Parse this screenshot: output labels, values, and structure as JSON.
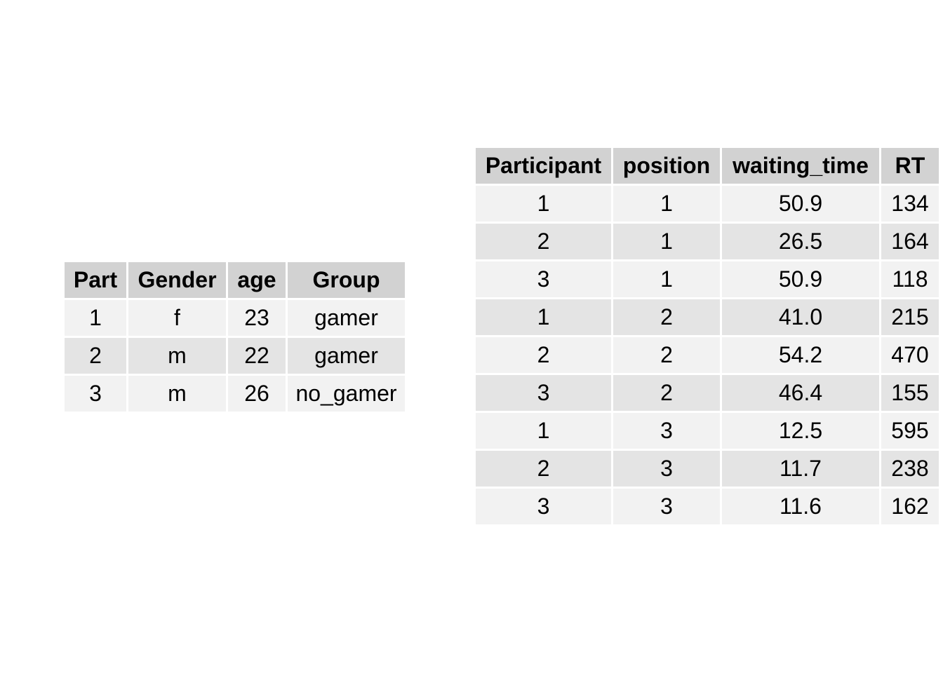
{
  "chart_data": [
    {
      "type": "table",
      "columns": [
        "Part",
        "Gender",
        "age",
        "Group"
      ],
      "rows": [
        [
          "1",
          "f",
          "23",
          "gamer"
        ],
        [
          "2",
          "m",
          "22",
          "gamer"
        ],
        [
          "3",
          "m",
          "26",
          "no_gamer"
        ]
      ]
    },
    {
      "type": "table",
      "columns": [
        "Participant",
        "position",
        "waiting_time",
        "RT"
      ],
      "rows": [
        [
          "1",
          "1",
          "50.9",
          "134"
        ],
        [
          "2",
          "1",
          "26.5",
          "164"
        ],
        [
          "3",
          "1",
          "50.9",
          "118"
        ],
        [
          "1",
          "2",
          "41.0",
          "215"
        ],
        [
          "2",
          "2",
          "54.2",
          "470"
        ],
        [
          "3",
          "2",
          "46.4",
          "155"
        ],
        [
          "1",
          "3",
          "12.5",
          "595"
        ],
        [
          "2",
          "3",
          "11.7",
          "238"
        ],
        [
          "3",
          "3",
          "11.6",
          "162"
        ]
      ]
    }
  ],
  "colors": {
    "header_bg": "#d2d2d2",
    "row_light": "#f2f2f2",
    "row_dark": "#e4e4e4"
  }
}
